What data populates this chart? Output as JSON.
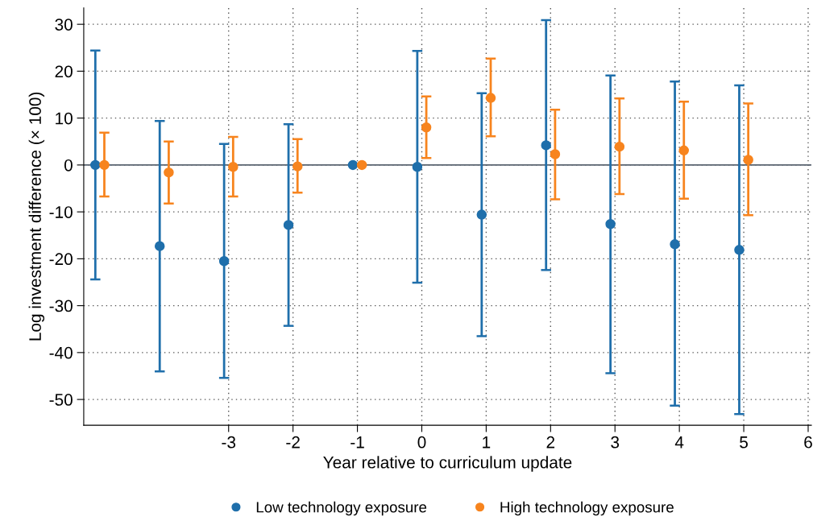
{
  "chart_data": {
    "type": "scatter",
    "xlabel": "Year relative to curriculum update",
    "ylabel": "Log investment difference (× 100)",
    "xlim": [
      -5.25,
      6.05
    ],
    "xticks": [
      -3,
      -2,
      -1,
      0,
      1,
      2,
      3,
      4,
      5,
      6
    ],
    "ylim": [
      -55.5,
      33.5
    ],
    "yticks": [
      -50,
      -40,
      -30,
      -20,
      -10,
      0,
      10,
      20,
      30
    ],
    "series": [
      {
        "name": "Low technology exposure",
        "color": "#1f6fab",
        "x": [
          -5.07,
          -4.07,
          -3.07,
          -2.07,
          -1.07,
          -0.07,
          0.93,
          1.93,
          2.93,
          3.93,
          4.93
        ],
        "values": [
          0,
          -17.3,
          -20.5,
          -12.8,
          0,
          -0.4,
          -10.6,
          4.2,
          -12.6,
          -16.9,
          -18.1
        ],
        "errors": [
          [
            -24.4,
            24.4
          ],
          [
            -44.0,
            9.4
          ],
          [
            -45.4,
            4.5
          ],
          [
            -34.3,
            8.7
          ],
          null,
          [
            -25.1,
            24.3
          ],
          [
            -36.5,
            15.3
          ],
          [
            -22.4,
            30.9
          ],
          [
            -44.4,
            19.1
          ],
          [
            -51.3,
            17.8
          ],
          [
            -53.1,
            17.0
          ]
        ]
      },
      {
        "name": "High technology exposure",
        "color": "#f7841e",
        "x": [
          -4.93,
          -3.93,
          -2.93,
          -1.93,
          -0.93,
          0.07,
          1.07,
          2.07,
          3.07,
          4.07,
          5.07
        ],
        "values": [
          0,
          -1.6,
          -0.4,
          -0.3,
          0,
          8.0,
          14.3,
          2.3,
          3.9,
          3.1,
          1.1
        ],
        "errors": [
          [
            -6.7,
            6.9
          ],
          [
            -8.2,
            5.0
          ],
          [
            -6.7,
            6.0
          ],
          [
            -5.9,
            5.5
          ],
          null,
          [
            1.5,
            14.6
          ],
          [
            6.1,
            22.7
          ],
          [
            -7.3,
            11.8
          ],
          [
            -6.2,
            14.2
          ],
          [
            -7.2,
            13.5
          ],
          [
            -10.7,
            13.1
          ]
        ]
      }
    ],
    "ref_lines": [
      {
        "axis": "y",
        "value": 0,
        "color": "#5a6470"
      }
    ],
    "grid": true,
    "legend": "bottom",
    "marker": "circle"
  }
}
